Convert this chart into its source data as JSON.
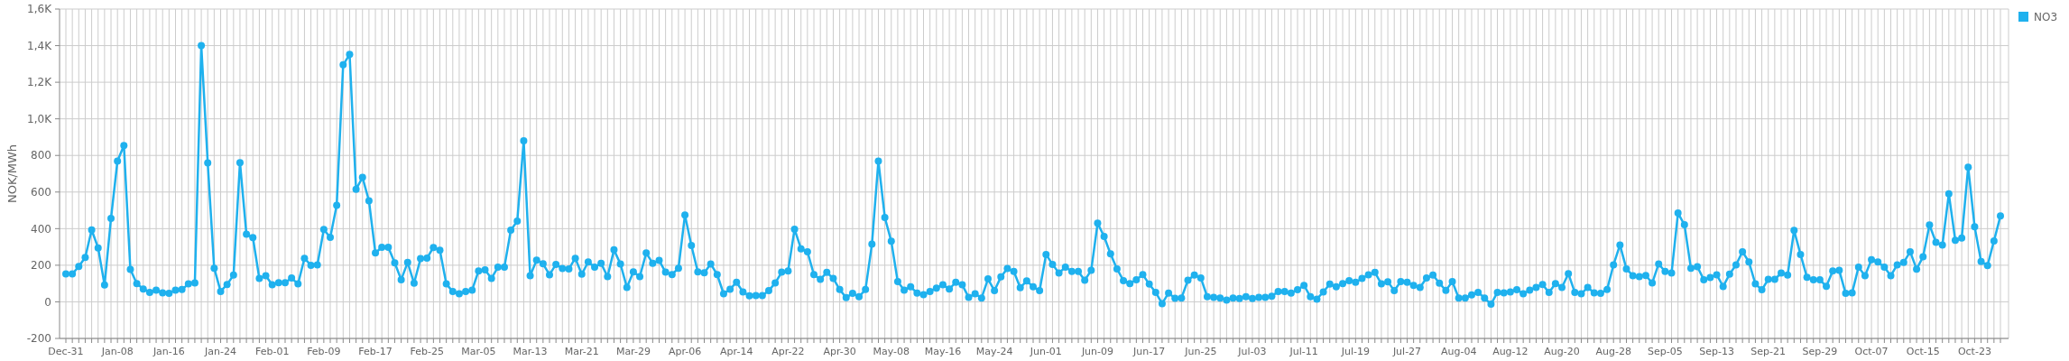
{
  "chart_data": {
    "type": "line",
    "ylabel": "NOK/MWh",
    "ylim": [
      -200,
      1600
    ],
    "yticks": [
      -200,
      0,
      200,
      400,
      600,
      800,
      {
        "value": 1000,
        "label": "1,0K"
      },
      {
        "value": 1200,
        "label": "1,2K"
      },
      {
        "value": 1400,
        "label": "1,4K"
      },
      {
        "value": 1600,
        "label": "1,6K"
      }
    ],
    "grid": true,
    "legend": "top right",
    "marker": "circle",
    "line_style": "solid",
    "categories": [
      "Dec-31",
      null,
      null,
      null,
      null,
      null,
      null,
      null,
      "Jan-08",
      null,
      null,
      null,
      null,
      null,
      null,
      null,
      "Jan-16",
      null,
      null,
      null,
      null,
      null,
      null,
      null,
      "Jan-24",
      null,
      null,
      null,
      null,
      null,
      null,
      null,
      "Feb-01",
      null,
      null,
      null,
      null,
      null,
      null,
      null,
      "Feb-09",
      null,
      null,
      null,
      null,
      null,
      null,
      null,
      "Feb-17",
      null,
      null,
      null,
      null,
      null,
      null,
      null,
      "Feb-25",
      null,
      null,
      null,
      null,
      null,
      null,
      null,
      "Mar-05",
      null,
      null,
      null,
      null,
      null,
      null,
      null,
      "Mar-13",
      null,
      null,
      null,
      null,
      null,
      null,
      null,
      "Mar-21",
      null,
      null,
      null,
      null,
      null,
      null,
      null,
      "Mar-29",
      null,
      null,
      null,
      null,
      null,
      null,
      null,
      "Apr-06",
      null,
      null,
      null,
      null,
      null,
      null,
      null,
      "Apr-14",
      null,
      null,
      null,
      null,
      null,
      null,
      null,
      "Apr-22",
      null,
      null,
      null,
      null,
      null,
      null,
      null,
      "Apr-30",
      null,
      null,
      null,
      null,
      null,
      null,
      null,
      "May-08",
      null,
      null,
      null,
      null,
      null,
      null,
      null,
      "May-16",
      null,
      null,
      null,
      null,
      null,
      null,
      null,
      "May-24",
      null,
      null,
      null,
      null,
      null,
      null,
      null,
      "Jun-01",
      null,
      null,
      null,
      null,
      null,
      null,
      null,
      "Jun-09",
      null,
      null,
      null,
      null,
      null,
      null,
      null,
      "Jun-17",
      null,
      null,
      null,
      null,
      null,
      null,
      null,
      "Jun-25",
      null,
      null,
      null,
      null,
      null,
      null,
      null,
      "Jul-03",
      null,
      null,
      null,
      null,
      null,
      null,
      null,
      "Jul-11",
      null,
      null,
      null,
      null,
      null,
      null,
      null,
      "Jul-19",
      null,
      null,
      null,
      null,
      null,
      null,
      null,
      "Jul-27",
      null,
      null,
      null,
      null,
      null,
      null,
      null,
      "Aug-04",
      null,
      null,
      null,
      null,
      null,
      null,
      null,
      "Aug-12",
      null,
      null,
      null,
      null,
      null,
      null,
      null,
      "Aug-20",
      null,
      null,
      null,
      null,
      null,
      null,
      null,
      "Aug-28",
      null,
      null,
      null,
      null,
      null,
      null,
      null,
      "Sep-05",
      null,
      null,
      null,
      null,
      null,
      null,
      null,
      "Sep-13",
      null,
      null,
      null,
      null,
      null,
      null,
      null,
      "Sep-21",
      null,
      null,
      null,
      null,
      null,
      null,
      null,
      "Sep-29",
      null,
      null,
      null,
      null,
      null,
      null,
      null,
      "Oct-07",
      null,
      null,
      null,
      null,
      null,
      null,
      null,
      "Oct-15",
      null,
      null,
      null,
      null,
      null,
      null,
      null,
      "Oct-23",
      null,
      null,
      null,
      null
    ],
    "series": [
      {
        "name": "NO3",
        "color": "#1fb1ee",
        "values": [
          152,
          152,
          193,
          243,
          393,
          295,
          92,
          456,
          769,
          854,
          177,
          100,
          70,
          51,
          64,
          49,
          46,
          64,
          67,
          98,
          103,
          1400,
          759,
          184,
          57,
          95,
          146,
          761,
          369,
          351,
          128,
          143,
          93,
          105,
          105,
          130,
          98,
          238,
          200,
          202,
          395,
          352,
          528,
          1295,
          1352,
          615,
          680,
          552,
          267,
          298,
          298,
          213,
          121,
          215,
          102,
          236,
          239,
          297,
          282,
          98,
          56,
          44,
          57,
          64,
          169,
          175,
          128,
          189,
          189,
          392,
          441,
          880,
          143,
          228,
          208,
          148,
          205,
          182,
          180,
          238,
          151,
          218,
          190,
          210,
          138,
          284,
          207,
          79,
          164,
          138,
          267,
          211,
          226,
          162,
          149,
          184,
          474,
          308,
          164,
          159,
          207,
          149,
          44,
          69,
          107,
          54,
          33,
          34,
          34,
          61,
          103,
          162,
          169,
          397,
          290,
          274,
          149,
          123,
          161,
          128,
          67,
          23,
          46,
          28,
          67,
          315,
          769,
          461,
          331,
          111,
          64,
          82,
          48,
          39,
          57,
          75,
          93,
          70,
          107,
          93,
          25,
          44,
          21,
          125,
          61,
          136,
          182,
          166,
          77,
          115,
          82,
          61,
          259,
          205,
          157,
          190,
          166,
          166,
          118,
          172,
          430,
          357,
          262,
          180,
          116,
          100,
          120,
          149,
          97,
          52,
          -10,
          48,
          20,
          21,
          118,
          146,
          131,
          28,
          25,
          21,
          10,
          21,
          18,
          28,
          18,
          25,
          25,
          30,
          56,
          56,
          48,
          66,
          90,
          28,
          15,
          54,
          97,
          82,
          100,
          116,
          107,
          128,
          148,
          161,
          98,
          110,
          61,
          111,
          107,
          90,
          79,
          130,
          146,
          102,
          62,
          111,
          21,
          21,
          38,
          52,
          21,
          -13,
          52,
          49,
          54,
          66,
          44,
          64,
          79,
          95,
          51,
          100,
          79,
          154,
          51,
          44,
          79,
          49,
          46,
          67,
          202,
          311,
          180,
          143,
          138,
          144,
          103,
          207,
          166,
          157,
          485,
          421,
          184,
          192,
          121,
          133,
          148,
          84,
          151,
          202,
          274,
          218,
          98,
          66,
          123,
          123,
          157,
          146,
          390,
          259,
          134,
          120,
          120,
          85,
          169,
          172,
          46,
          49,
          190,
          143,
          230,
          218,
          190,
          143,
          202,
          215,
          274,
          179,
          246,
          420,
          325,
          310,
          590,
          336,
          349,
          736,
          410,
          221,
          198,
          333,
          469
        ]
      }
    ]
  }
}
